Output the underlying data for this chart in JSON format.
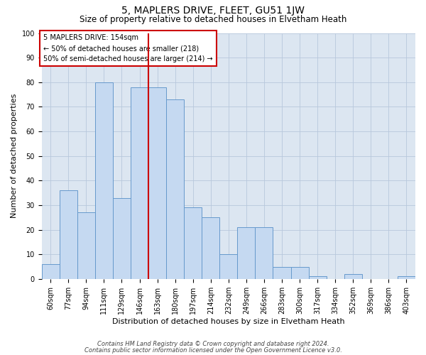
{
  "title": "5, MAPLERS DRIVE, FLEET, GU51 1JW",
  "subtitle": "Size of property relative to detached houses in Elvetham Heath",
  "xlabel": "Distribution of detached houses by size in Elvetham Heath",
  "ylabel": "Number of detached properties",
  "categories": [
    "60sqm",
    "77sqm",
    "94sqm",
    "111sqm",
    "129sqm",
    "146sqm",
    "163sqm",
    "180sqm",
    "197sqm",
    "214sqm",
    "232sqm",
    "249sqm",
    "266sqm",
    "283sqm",
    "300sqm",
    "317sqm",
    "334sqm",
    "352sqm",
    "369sqm",
    "386sqm",
    "403sqm"
  ],
  "values": [
    6,
    36,
    27,
    80,
    33,
    78,
    78,
    73,
    29,
    25,
    10,
    21,
    21,
    5,
    5,
    1,
    0,
    2,
    0,
    0,
    1
  ],
  "bar_color": "#c5d9f1",
  "bar_edge_color": "#6699cc",
  "vline_x": 6.0,
  "vline_color": "#cc0000",
  "annotation_lines": [
    "5 MAPLERS DRIVE: 154sqm",
    "← 50% of detached houses are smaller (218)",
    "50% of semi-detached houses are larger (214) →"
  ],
  "annotation_box_color": "#ffffff",
  "annotation_box_edge": "#cc0000",
  "ylim": [
    0,
    100
  ],
  "yticks": [
    0,
    10,
    20,
    30,
    40,
    50,
    60,
    70,
    80,
    90,
    100
  ],
  "bg_color": "#ffffff",
  "plot_bg_color": "#dce6f1",
  "grid_color": "#b8c8dc",
  "footnote1": "Contains HM Land Registry data © Crown copyright and database right 2024.",
  "footnote2": "Contains public sector information licensed under the Open Government Licence v3.0.",
  "title_fontsize": 10,
  "subtitle_fontsize": 8.5,
  "xlabel_fontsize": 8,
  "ylabel_fontsize": 8,
  "tick_fontsize": 7,
  "annot_fontsize": 7,
  "footnote_fontsize": 6
}
